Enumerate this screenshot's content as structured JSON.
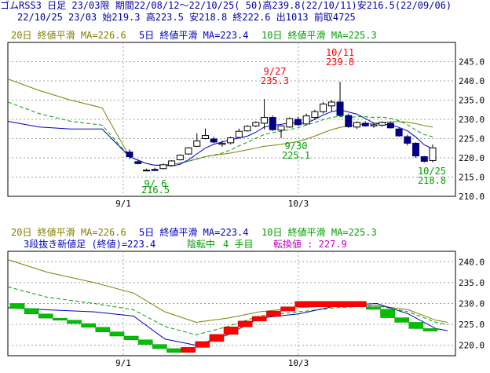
{
  "header": {
    "line1": "ゴムRSS3 日足 23/03限 期間22/08/12～22/10/25( 50)高239.8(22/10/11)安216.5(22/09/06)",
    "line2": "22/10/25 23/03 始219.3 高223.5 安218.8 終222.6 出1013 前取4725"
  },
  "legend": {
    "ma20": "20日 終値平滑 MA=226.6",
    "ma5": "5日 終値平滑 MA=223.4",
    "ma10": "10日 終値平滑 MA=225.3",
    "threeline": "3段抜き新値足 (終値)=223.4",
    "state": "陰転中",
    "steps": "4 手目",
    "reversal": "転換値 : 227.9"
  },
  "colors": {
    "ma20": "#808000",
    "ma5": "#0000c0",
    "ma10": "#00a000",
    "up_brick": "#ff0000",
    "down_brick": "#00c000",
    "candle_down": "#000080",
    "high_label": "#ff0000",
    "low_label": "#00a000",
    "grid": "#a0a0a0"
  },
  "chart_data": [
    {
      "type": "candlestick",
      "ylim": [
        210,
        250
      ],
      "yticks": [
        "210.0",
        "215.0",
        "220.0",
        "225.0",
        "230.0",
        "235.0",
        "240.0",
        "245.0"
      ],
      "xticks": [
        "9/1",
        "10/3"
      ],
      "annotations": [
        {
          "date": "9/ 6",
          "value": "216.5"
        },
        {
          "date": "9/27",
          "value": "235.3"
        },
        {
          "date": "9/30",
          "value": "225.1"
        },
        {
          "date": "10/11",
          "value": "239.8"
        },
        {
          "date": "10/25",
          "value": "218.8"
        }
      ],
      "candles": [
        [
          221.5,
          222.2,
          219.7,
          220.3
        ],
        [
          219.0,
          219.5,
          218.3,
          218.5
        ],
        [
          216.8,
          217.2,
          216.5,
          216.8
        ],
        [
          217.0,
          217.4,
          216.6,
          216.7
        ],
        [
          217.2,
          218.5,
          217.0,
          218.2
        ],
        [
          218.0,
          219.4,
          217.9,
          219.2
        ],
        [
          219.5,
          220.9,
          219.3,
          220.7
        ],
        [
          221.0,
          222.8,
          220.8,
          222.6
        ],
        [
          223.0,
          226.4,
          222.8,
          224.4
        ],
        [
          225.0,
          227.6,
          224.8,
          225.8
        ],
        [
          224.9,
          225.5,
          223.8,
          224.1
        ],
        [
          223.5,
          224.5,
          222.9,
          223.8
        ],
        [
          223.9,
          225.5,
          223.5,
          225.2
        ],
        [
          225.3,
          227.6,
          225.1,
          226.9
        ],
        [
          227.0,
          228.5,
          226.8,
          228.2
        ],
        [
          228.3,
          229.5,
          228.0,
          229.2
        ],
        [
          229.0,
          235.3,
          227.4,
          230.5
        ],
        [
          230.5,
          231.0,
          227.0,
          227.3
        ],
        [
          227.2,
          228.5,
          225.1,
          228.3
        ],
        [
          228.0,
          230.5,
          227.8,
          230.2
        ],
        [
          230.0,
          230.7,
          228.4,
          228.6
        ],
        [
          228.8,
          231.5,
          228.5,
          230.9
        ],
        [
          230.5,
          232.5,
          230.0,
          232.0
        ],
        [
          232.0,
          234.5,
          231.5,
          234.0
        ],
        [
          233.5,
          235.0,
          232.0,
          234.5
        ],
        [
          234.5,
          239.8,
          230.8,
          231.0
        ],
        [
          231.0,
          231.5,
          227.8,
          228.1
        ],
        [
          228.0,
          229.5,
          227.5,
          229.2
        ],
        [
          229.0,
          229.5,
          228.1,
          228.3
        ],
        [
          228.3,
          228.9,
          227.8,
          228.6
        ],
        [
          228.5,
          229.5,
          228.1,
          229.2
        ],
        [
          229.0,
          229.3,
          227.6,
          227.8
        ],
        [
          227.5,
          227.8,
          225.5,
          225.7
        ],
        [
          225.5,
          226.0,
          223.2,
          223.8
        ],
        [
          223.8,
          224.0,
          220.0,
          220.5
        ],
        [
          220.3,
          220.5,
          218.8,
          219.1
        ],
        [
          219.3,
          223.5,
          218.8,
          222.6
        ]
      ]
    },
    {
      "type": "three-line-break",
      "ylim": [
        217.5,
        242.5
      ],
      "yticks": [
        "220.0",
        "225.0",
        "230.0",
        "235.0",
        "240.0"
      ],
      "xticks": [
        "9/1",
        "10/3"
      ]
    }
  ]
}
